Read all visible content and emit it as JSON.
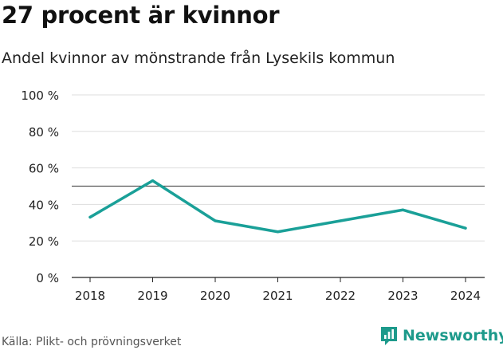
{
  "title": "27 procent är kvinnor",
  "subtitle": "Andel kvinnor av mönstrande från Lysekils kommun",
  "source": "Källa: Plikt- och prövningsverket",
  "brand": {
    "name": "Newsworthy",
    "icon": "bar-chart-icon",
    "color": "#1d9a8b"
  },
  "chart_data": {
    "type": "line",
    "title": "27 procent är kvinnor",
    "subtitle": "Andel kvinnor av mönstrande från Lysekils kommun",
    "xlabel": "",
    "ylabel": "",
    "x": [
      "2018",
      "2019",
      "2020",
      "2021",
      "2022",
      "2023",
      "2024"
    ],
    "series": [
      {
        "name": "Andel kvinnor",
        "values": [
          33,
          53,
          31,
          25,
          31,
          37,
          27
        ],
        "color": "#1aa098"
      }
    ],
    "reference_line": {
      "value": 50,
      "color": "#555555"
    },
    "ylim": [
      0,
      100
    ],
    "yticks": [
      0,
      20,
      40,
      60,
      80,
      100
    ],
    "ytick_labels": [
      "0 %",
      "20 %",
      "40 %",
      "60 %",
      "80 %",
      "100 %"
    ],
    "grid": true
  }
}
